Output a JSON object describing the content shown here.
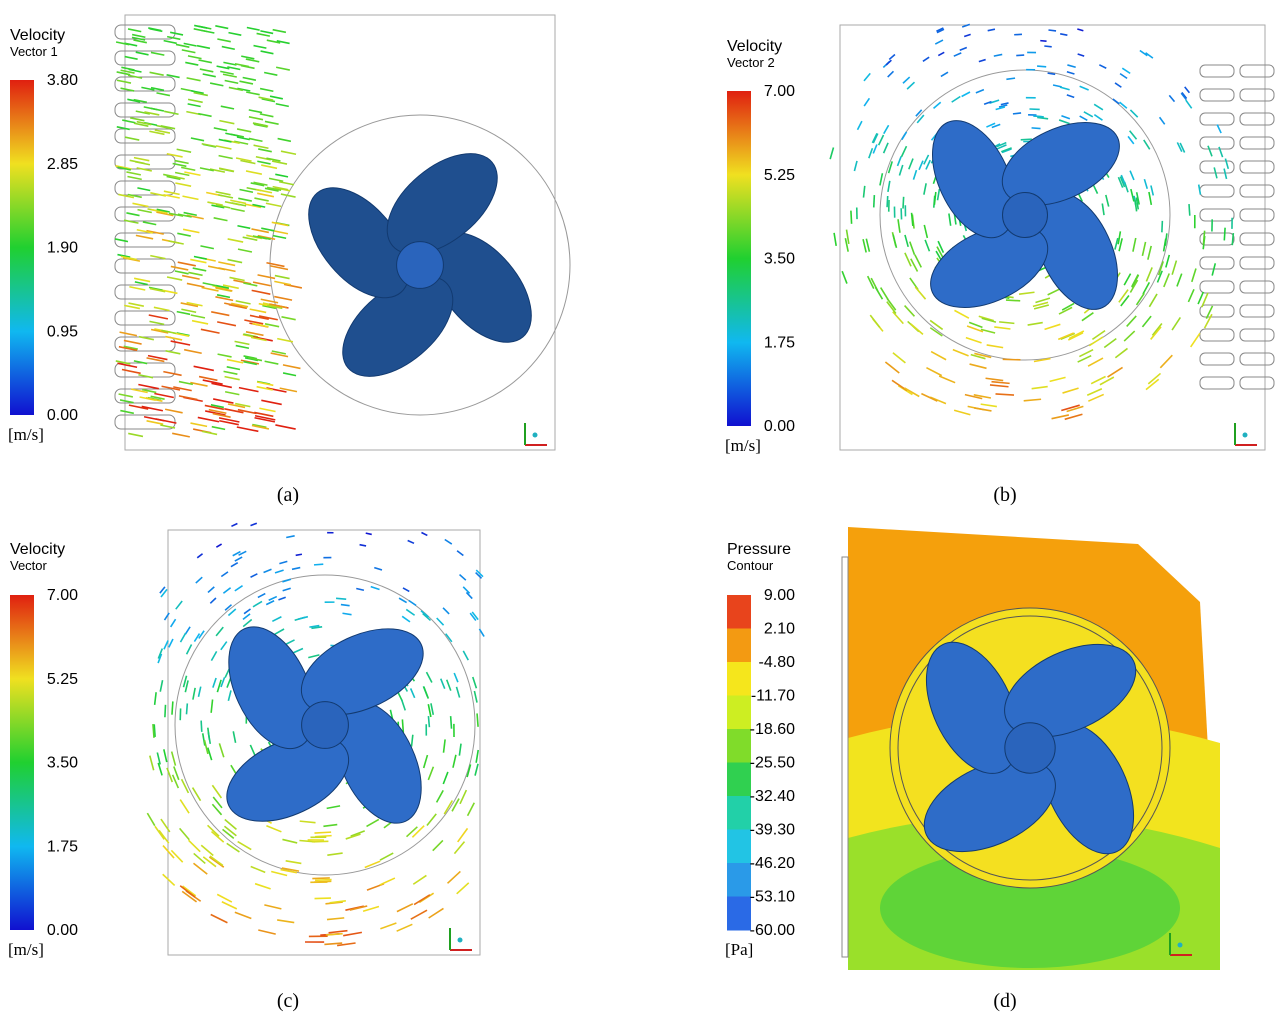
{
  "panels": [
    {
      "legend": {
        "title": "Velocity",
        "subtitle": "Vector 1",
        "ticks": [
          "3.80",
          "2.85",
          "1.90",
          "0.95",
          "0.00"
        ],
        "unit": "[m/s]"
      },
      "caption": "(a)"
    },
    {
      "legend": {
        "title": "Velocity",
        "subtitle": "Vector 2",
        "ticks": [
          "7.00",
          "5.25",
          "3.50",
          "1.75",
          "0.00"
        ],
        "unit": "[m/s]"
      },
      "caption": "(b)"
    },
    {
      "legend": {
        "title": "Velocity",
        "subtitle": "Vector",
        "ticks": [
          "7.00",
          "5.25",
          "3.50",
          "1.75",
          "0.00"
        ],
        "unit": "[m/s]"
      },
      "caption": "(c)"
    },
    {
      "legend": {
        "title": "Pressure",
        "subtitle": "Contour",
        "ticks": [
          "9.00",
          "2.10",
          "-4.80",
          "-11.70",
          "-18.60",
          "-25.50",
          "-32.40",
          "-39.30",
          "-46.20",
          "-53.10",
          "-60.00"
        ],
        "unit": "[Pa]"
      },
      "caption": "(d)"
    }
  ]
}
